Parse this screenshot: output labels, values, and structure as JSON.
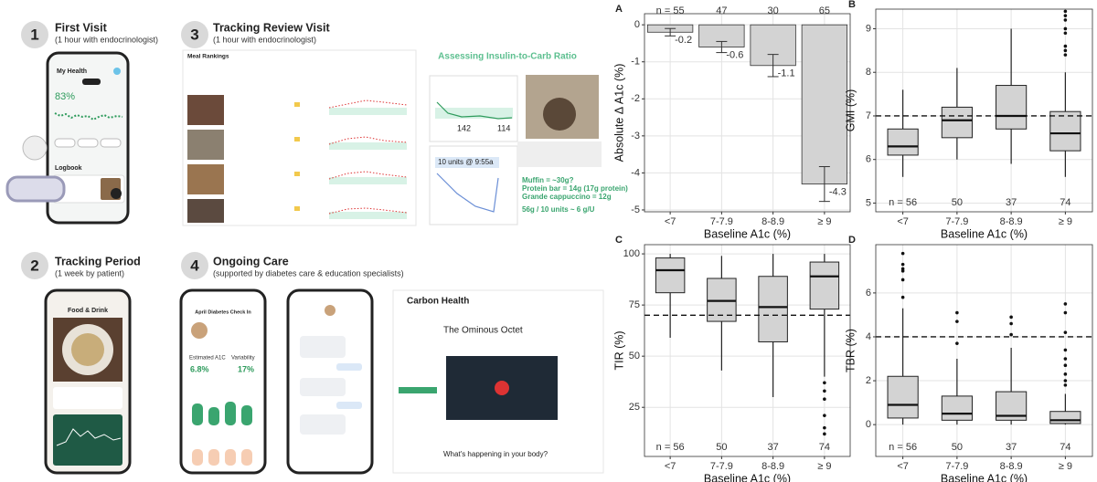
{
  "steps": [
    {
      "number": "1",
      "title": "First Visit",
      "subtitle": "(1 hour with endocrinologist)"
    },
    {
      "number": "3",
      "title": "Tracking Review Visit",
      "subtitle": "(1 hour with endocrinologist)"
    },
    {
      "number": "2",
      "title": "Tracking Period",
      "subtitle": "(1 week by patient)"
    },
    {
      "number": "4",
      "title": "Ongoing Care",
      "subtitle": "(supported by diabetes care & education specialists)"
    }
  ],
  "screens": {
    "app_title": "My Health",
    "tir_percent": "83%",
    "logbook": "Logbook",
    "food_drink": "Food & Drink",
    "meal_rankings": "Meal Rankings",
    "ratio_title": "Assessing Insulin-to-Carb Ratio",
    "glucose_before": "142",
    "glucose_after": "114",
    "bolus": "10 units @ 9:55a",
    "carb_lines": [
      "Muffin = ~30g?",
      "Protein bar = 14g (17g protein)",
      "Grande cappuccino = 12g"
    ],
    "ratio": "56g / 10 units ~ 6 g/U",
    "checkin_title": "April Diabetes Check In",
    "estimated_a1c": "Estimated A1C",
    "a1c_value": "6.8%",
    "variability": "Variability",
    "variability_value": "17%",
    "site_name": "Carbon Health",
    "article_title": "The Ominous Octet",
    "article_question": "What's happening in your body?"
  },
  "chart_data": [
    {
      "type": "bar",
      "label": "A",
      "y_label": "Absolute Δ A1c (%)",
      "x_label": "Baseline A1c (%)",
      "categories": [
        "<7",
        "7-7.9",
        "8-8.9",
        "≥ 9"
      ],
      "values": [
        -0.2,
        -0.6,
        -1.1,
        -4.3
      ],
      "errors": [
        0.1,
        0.15,
        0.3,
        0.47
      ],
      "n_labels": [
        "n = 55",
        "47",
        "30",
        "65"
      ],
      "color": "#d3d3d3",
      "ylim": [
        -5.05,
        0.3
      ],
      "yticks": [
        -5,
        -4,
        -3,
        -2,
        -1,
        0
      ],
      "grid": true
    },
    {
      "type": "box",
      "label": "B",
      "y_label": "GMI (%)",
      "x_label": "Baseline A1c (%)",
      "categories": [
        "<7",
        "7-7.9",
        "8-8.9",
        "≥ 9"
      ],
      "boxes": [
        {
          "low": 5.6,
          "q1": 6.1,
          "median": 6.3,
          "q3": 6.7,
          "high": 7.6,
          "outliers": []
        },
        {
          "low": 6.0,
          "q1": 6.5,
          "median": 6.9,
          "q3": 7.2,
          "high": 8.1,
          "outliers": []
        },
        {
          "low": 5.9,
          "q1": 6.7,
          "median": 7.0,
          "q3": 7.7,
          "high": 9.0,
          "outliers": []
        },
        {
          "low": 5.6,
          "q1": 6.2,
          "median": 6.6,
          "q3": 7.1,
          "high": 8.0,
          "outliers": [
            8.4,
            8.5,
            8.6,
            8.9,
            9.0,
            9.2,
            9.3,
            9.4
          ]
        }
      ],
      "n_labels": [
        "n = 56",
        "50",
        "37",
        "74"
      ],
      "reference_line": 7,
      "color": "#d3d3d3",
      "ylim": [
        4.8,
        9.45
      ],
      "yticks": [
        5,
        6,
        7,
        8,
        9
      ],
      "grid": true
    },
    {
      "type": "box",
      "label": "C",
      "y_label": "TIR (%)",
      "x_label": "Baseline A1c (%)",
      "categories": [
        "<7",
        "7-7.9",
        "8-8.9",
        "≥ 9"
      ],
      "boxes": [
        {
          "low": 59,
          "q1": 81,
          "median": 92,
          "q3": 98,
          "high": 100,
          "outliers": []
        },
        {
          "low": 43,
          "q1": 67,
          "median": 77,
          "q3": 88,
          "high": 99,
          "outliers": []
        },
        {
          "low": 30,
          "q1": 57,
          "median": 74,
          "q3": 89,
          "high": 100,
          "outliers": []
        },
        {
          "low": 40,
          "q1": 73,
          "median": 89,
          "q3": 96,
          "high": 100,
          "outliers": [
            37,
            33,
            29,
            21,
            15,
            12
          ]
        }
      ],
      "n_labels": [
        "n = 56",
        "50",
        "37",
        "74"
      ],
      "reference_line": 70,
      "color": "#d3d3d3",
      "ylim": [
        1,
        104.5
      ],
      "yticks": [
        25,
        50,
        75,
        100
      ],
      "grid": true
    },
    {
      "type": "box",
      "label": "D",
      "y_label": "TBR (%)",
      "x_label": "Baseline A1c (%)",
      "categories": [
        "<7",
        "7-7.9",
        "8-8.9",
        "≥ 9"
      ],
      "boxes": [
        {
          "low": 0,
          "q1": 0.3,
          "median": 0.9,
          "q3": 2.2,
          "high": 5.3,
          "outliers": [
            5.8,
            6.6,
            7.0,
            7.1,
            7.3,
            7.8
          ]
        },
        {
          "low": 0,
          "q1": 0.2,
          "median": 0.5,
          "q3": 1.3,
          "high": 3.0,
          "outliers": [
            3.7,
            4.7,
            5.1
          ]
        },
        {
          "low": 0,
          "q1": 0.2,
          "median": 0.4,
          "q3": 1.5,
          "high": 3.5,
          "outliers": [
            4.1,
            4.6,
            4.9
          ]
        },
        {
          "low": 0,
          "q1": 0.05,
          "median": 0.2,
          "q3": 0.6,
          "high": 1.4,
          "outliers": [
            1.8,
            2.0,
            2.3,
            2.7,
            3.0,
            3.4,
            4.2,
            5.1,
            5.5
          ]
        }
      ],
      "n_labels": [
        "n = 56",
        "50",
        "37",
        "74"
      ],
      "reference_line": 4,
      "color": "#d3d3d3",
      "ylim": [
        -1.45,
        8.2
      ],
      "yticks": [
        0,
        2,
        4,
        6
      ],
      "grid": true
    }
  ]
}
